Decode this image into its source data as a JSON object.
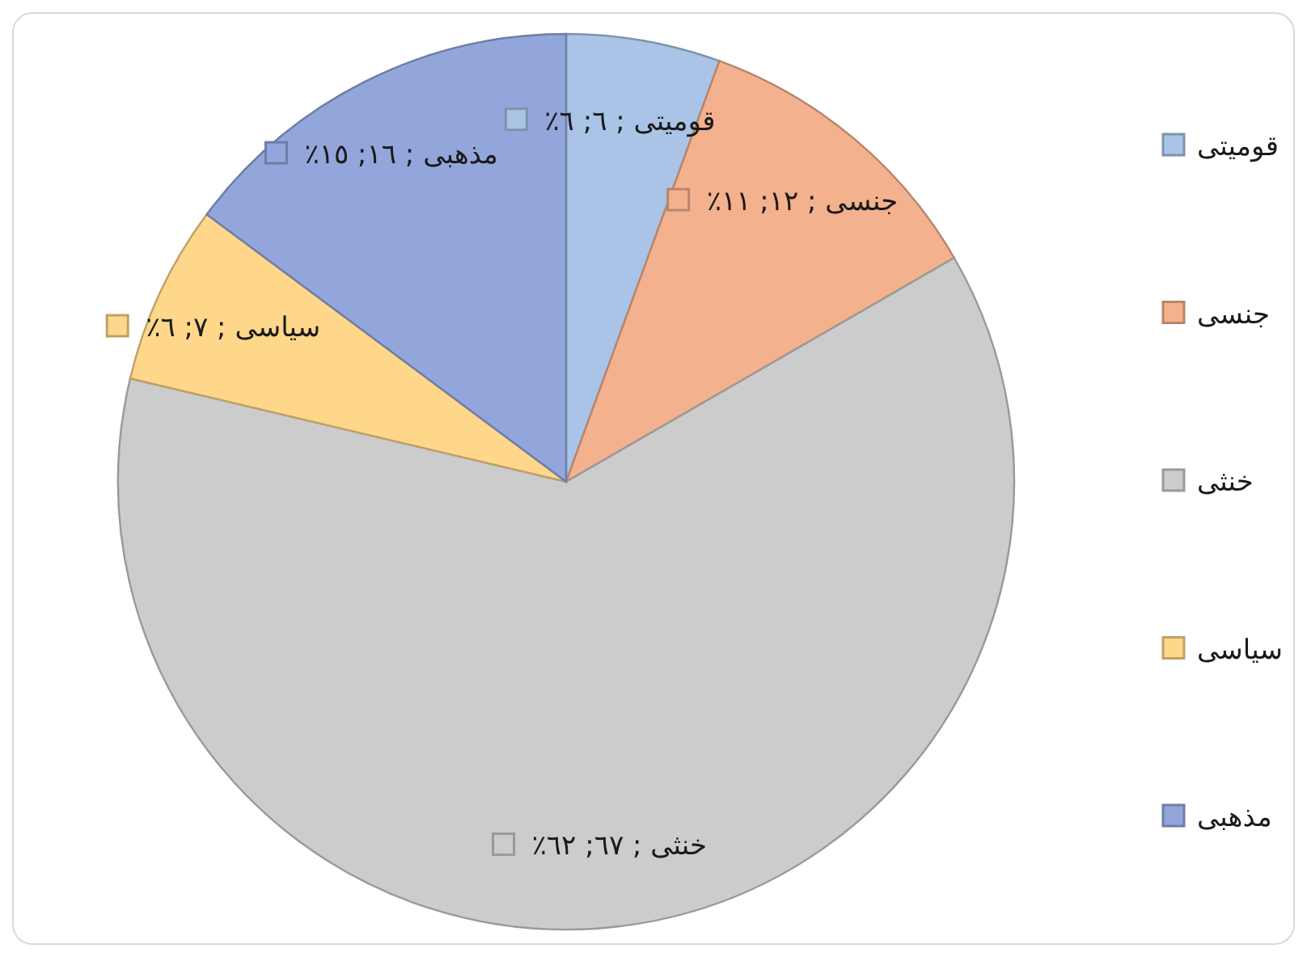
{
  "chart_data": {
    "type": "pie",
    "categories": [
      "قومیتی",
      "جنسی",
      "خنثی",
      "سیاسی",
      "مذهبی"
    ],
    "values": [
      6,
      12,
      67,
      7,
      16
    ],
    "colors": [
      "#a9c4e6",
      "#f4b18e",
      "#cccccc",
      "#ffd78a",
      "#93a6db"
    ],
    "value_labels": [
      "قومیتی ; ٦; ٦٪",
      "جنسی ; ١٢; ١١٪",
      "خنثی ; ٦٧; ٦٢٪",
      "سیاسی ; ٧; ٦٪",
      "مذهبی ; ١٦; ١٥٪"
    ],
    "legend": "right"
  }
}
